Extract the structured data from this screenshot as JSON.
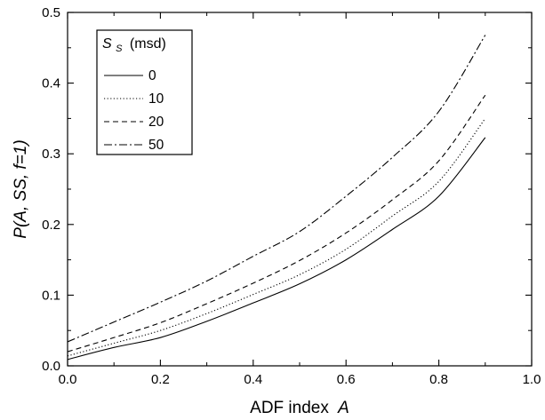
{
  "chart_data": {
    "type": "line",
    "xlabel": "ADF index",
    "xlabel_var": "A",
    "ylabel": "P(A, SS, f=1)",
    "xlim": [
      0.0,
      1.0
    ],
    "ylim": [
      0.0,
      0.5
    ],
    "xticks": [
      "0.0",
      "0.2",
      "0.4",
      "0.6",
      "0.8",
      "1.0"
    ],
    "yticks": [
      "0.0",
      "0.1",
      "0.2",
      "0.3",
      "0.4",
      "0.5"
    ],
    "grid": false,
    "legend": {
      "title_main": "S",
      "title_sub": "S",
      "title_unit": "(msd)",
      "placement": "top-left"
    },
    "series": [
      {
        "name": "0",
        "dash": "solid",
        "x": [
          0.0,
          0.1,
          0.2,
          0.3,
          0.4,
          0.5,
          0.6,
          0.7,
          0.8,
          0.9
        ],
        "y": [
          0.009,
          0.026,
          0.04,
          0.063,
          0.089,
          0.116,
          0.15,
          0.193,
          0.24,
          0.323
        ]
      },
      {
        "name": "10",
        "dash": "dotted",
        "x": [
          0.0,
          0.1,
          0.2,
          0.3,
          0.4,
          0.5,
          0.6,
          0.7,
          0.8,
          0.9
        ],
        "y": [
          0.014,
          0.032,
          0.05,
          0.074,
          0.101,
          0.129,
          0.165,
          0.212,
          0.261,
          0.35
        ]
      },
      {
        "name": "20",
        "dash": "dashed",
        "x": [
          0.0,
          0.1,
          0.2,
          0.3,
          0.4,
          0.5,
          0.6,
          0.7,
          0.8,
          0.9
        ],
        "y": [
          0.02,
          0.04,
          0.061,
          0.088,
          0.117,
          0.149,
          0.188,
          0.235,
          0.29,
          0.383
        ]
      },
      {
        "name": "50",
        "dash": "dashdot",
        "x": [
          0.0,
          0.1,
          0.2,
          0.3,
          0.4,
          0.5,
          0.6,
          0.7,
          0.8,
          0.9
        ],
        "y": [
          0.034,
          0.062,
          0.09,
          0.12,
          0.155,
          0.19,
          0.24,
          0.295,
          0.36,
          0.468
        ]
      }
    ]
  }
}
